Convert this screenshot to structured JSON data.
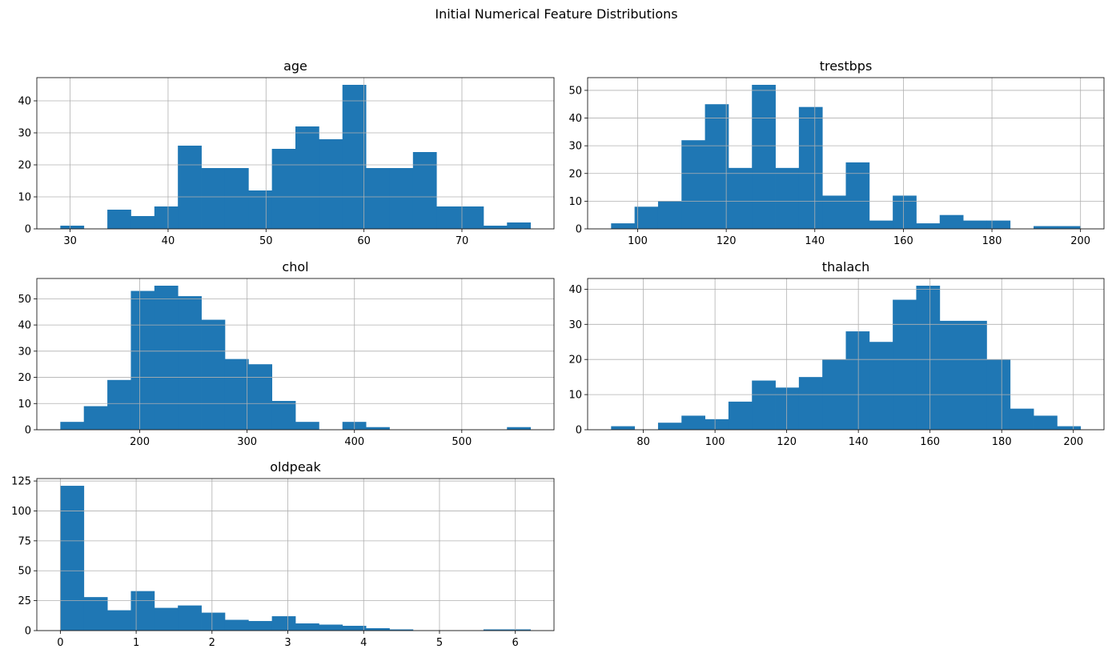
{
  "figure": {
    "title": "Initial Numerical Feature Distributions"
  },
  "chart_data": [
    {
      "type": "bar",
      "title": "age",
      "grid": true,
      "bin_edges": [
        29.0,
        31.4,
        33.8,
        36.2,
        38.6,
        41.0,
        43.4,
        45.8,
        48.2,
        50.6,
        53.0,
        55.4,
        57.8,
        60.2,
        62.6,
        65.0,
        67.4,
        69.8,
        72.2,
        74.6,
        77.0
      ],
      "counts": [
        1,
        0,
        6,
        4,
        7,
        26,
        19,
        19,
        12,
        25,
        32,
        28,
        45,
        19,
        19,
        24,
        7,
        7,
        1,
        2
      ],
      "xlim": [
        26.6,
        79.4
      ],
      "ylim": [
        0,
        47.25
      ],
      "xticks": [
        30,
        40,
        50,
        60,
        70
      ],
      "yticks": [
        0,
        10,
        20,
        30,
        40
      ]
    },
    {
      "type": "bar",
      "title": "trestbps",
      "grid": true,
      "bin_edges": [
        94.0,
        99.3,
        104.6,
        109.9,
        115.2,
        120.5,
        125.8,
        131.1,
        136.4,
        141.7,
        147.0,
        152.3,
        157.6,
        162.9,
        168.2,
        173.5,
        178.8,
        184.1,
        189.4,
        194.7,
        200.0
      ],
      "counts": [
        2,
        8,
        10,
        32,
        45,
        22,
        52,
        22,
        44,
        12,
        24,
        3,
        12,
        2,
        5,
        3,
        3,
        0,
        1,
        1
      ],
      "xlim": [
        88.7,
        205.3
      ],
      "ylim": [
        0,
        54.6
      ],
      "xticks": [
        100,
        120,
        140,
        160,
        180,
        200
      ],
      "yticks": [
        0,
        10,
        20,
        30,
        40,
        50
      ]
    },
    {
      "type": "bar",
      "title": "chol",
      "grid": true,
      "bin_edges": [
        126.0,
        147.9,
        169.8,
        191.7,
        213.6,
        235.5,
        257.4,
        279.3,
        301.2,
        323.1,
        345.0,
        366.9,
        388.8,
        410.7,
        432.6,
        454.5,
        476.4,
        498.3,
        520.2,
        542.1,
        564.0
      ],
      "counts": [
        3,
        9,
        19,
        53,
        55,
        51,
        42,
        27,
        25,
        11,
        3,
        0,
        3,
        1,
        0,
        0,
        0,
        0,
        0,
        1
      ],
      "xlim": [
        104.1,
        585.9
      ],
      "ylim": [
        0,
        57.75
      ],
      "xticks": [
        200,
        300,
        400,
        500
      ],
      "yticks": [
        0,
        10,
        20,
        30,
        40,
        50
      ]
    },
    {
      "type": "bar",
      "title": "thalach",
      "grid": true,
      "bin_edges": [
        71.0,
        77.55,
        84.1,
        90.65,
        97.2,
        103.75,
        110.3,
        116.85,
        123.4,
        129.95,
        136.5,
        143.05,
        149.6,
        156.15,
        162.7,
        169.25,
        175.8,
        182.35,
        188.9,
        195.45,
        202.0
      ],
      "counts": [
        1,
        0,
        2,
        4,
        3,
        8,
        14,
        12,
        15,
        20,
        28,
        25,
        37,
        41,
        31,
        31,
        20,
        6,
        4,
        1
      ],
      "xlim": [
        64.45,
        208.55
      ],
      "ylim": [
        0,
        43.05
      ],
      "xticks": [
        80,
        100,
        120,
        140,
        160,
        180,
        200
      ],
      "yticks": [
        0,
        10,
        20,
        30,
        40
      ]
    },
    {
      "type": "bar",
      "title": "oldpeak",
      "grid": true,
      "bin_edges": [
        0.0,
        0.31,
        0.62,
        0.93,
        1.24,
        1.55,
        1.86,
        2.17,
        2.48,
        2.79,
        3.1,
        3.41,
        3.72,
        4.03,
        4.34,
        4.65,
        4.96,
        5.27,
        5.58,
        5.89,
        6.2
      ],
      "counts": [
        121,
        28,
        17,
        33,
        19,
        21,
        15,
        9,
        8,
        12,
        6,
        5,
        4,
        2,
        1,
        0,
        0,
        0,
        1,
        1
      ],
      "xlim": [
        -0.31,
        6.51
      ],
      "ylim": [
        0,
        127.05
      ],
      "xticks": [
        0,
        1,
        2,
        3,
        4,
        5,
        6
      ],
      "yticks": [
        0,
        25,
        50,
        75,
        100,
        125
      ]
    }
  ]
}
